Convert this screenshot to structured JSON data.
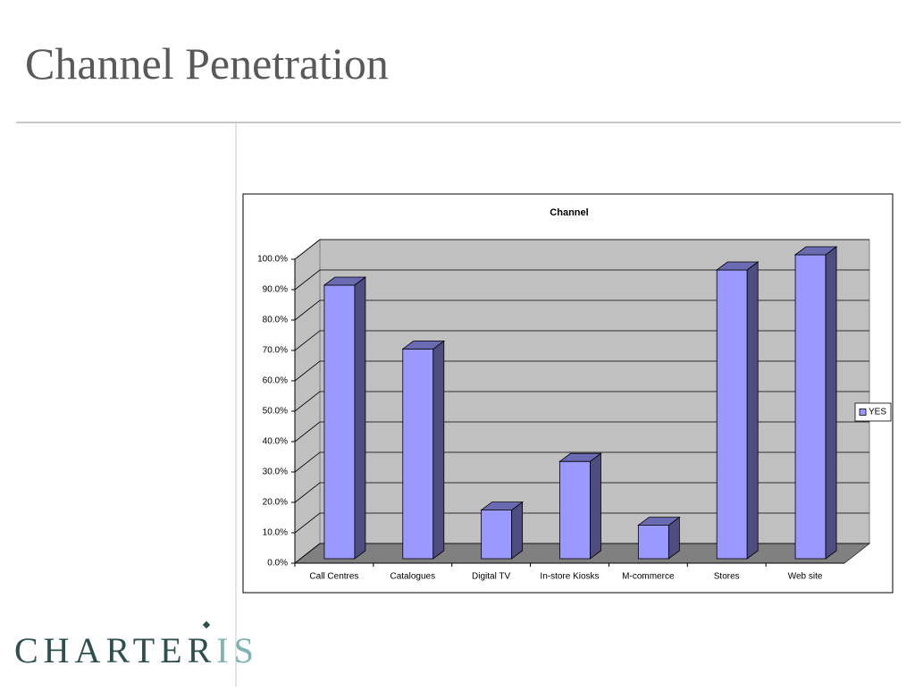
{
  "slide_title": "Channel Penetration",
  "logo": {
    "main": "CHARTER",
    "accent": "IS"
  },
  "chart_data": {
    "type": "bar3d",
    "title": "Channel",
    "categories": [
      "Call Centres",
      "Catalogues",
      "Digital TV",
      "In-store Kiosks",
      "M-commerce",
      "Stores",
      "Web site"
    ],
    "series": [
      {
        "name": "YES",
        "color": "#9999ff",
        "values": [
          90,
          69,
          16,
          32,
          11,
          95,
          100
        ]
      }
    ],
    "ylim": [
      0,
      100
    ],
    "yticks": [
      {
        "value": 0,
        "label": "0.0%"
      },
      {
        "value": 10,
        "label": "10.0%"
      },
      {
        "value": 20,
        "label": "20.0%"
      },
      {
        "value": 30,
        "label": "30.0%"
      },
      {
        "value": 40,
        "label": "40.0%"
      },
      {
        "value": 50,
        "label": "50.0%"
      },
      {
        "value": 60,
        "label": "60.0%"
      },
      {
        "value": 70,
        "label": "70.0%"
      },
      {
        "value": 80,
        "label": "80.0%"
      },
      {
        "value": 90,
        "label": "90.0%"
      },
      {
        "value": 100,
        "label": "100.0%"
      }
    ],
    "grid": true,
    "legend": "right"
  }
}
